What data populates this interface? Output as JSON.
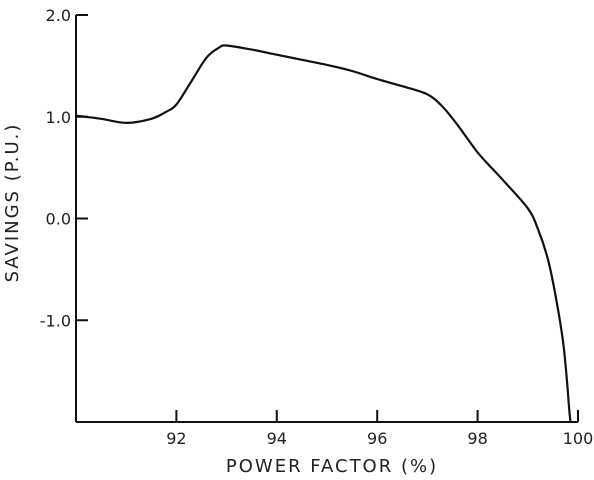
{
  "chart_data": {
    "type": "line",
    "title": "",
    "xlabel": "POWER FACTOR  (%)",
    "ylabel": "SAVINGS  (P.U.)",
    "xlim": [
      90,
      100
    ],
    "ylim": [
      -2.0,
      2.0
    ],
    "grid": false,
    "x_ticks": [
      92,
      94,
      96,
      98,
      100
    ],
    "x_tick_labels": [
      "92",
      "94",
      "96",
      "98",
      "100"
    ],
    "y_ticks": [
      2.0,
      1.0,
      0.0,
      -1.0
    ],
    "y_tick_labels": [
      "2.0",
      "1.0",
      "0.0",
      "-1.0"
    ],
    "series": [
      {
        "color": "#111111",
        "x": [
          90.0,
          90.5,
          91.0,
          91.5,
          91.8,
          92.0,
          92.3,
          92.6,
          92.85,
          93.0,
          93.5,
          94.0,
          94.5,
          95.0,
          95.5,
          96.0,
          96.5,
          97.0,
          97.3,
          97.6,
          98.0,
          98.5,
          99.0,
          99.2,
          99.4,
          99.55,
          99.7,
          99.78,
          99.82,
          99.85
        ],
        "y": [
          1.01,
          0.98,
          0.94,
          0.98,
          1.05,
          1.12,
          1.35,
          1.58,
          1.68,
          1.7,
          1.66,
          1.61,
          1.56,
          1.51,
          1.45,
          1.37,
          1.3,
          1.22,
          1.1,
          0.92,
          0.65,
          0.38,
          0.1,
          -0.1,
          -0.4,
          -0.75,
          -1.2,
          -1.6,
          -1.85,
          -2.0
        ]
      }
    ]
  }
}
